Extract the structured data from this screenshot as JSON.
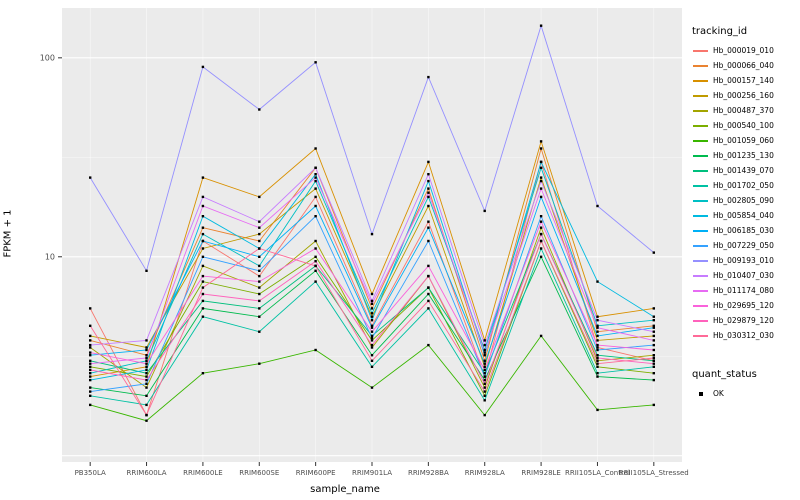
{
  "axes": {
    "x_label": "sample_name",
    "y_label": "FPKM + 1"
  },
  "legend": {
    "tracking_title": "tracking_id",
    "quant_title": "quant_status",
    "ok_label": "OK"
  },
  "panel": {
    "background": "#EBEBEB",
    "grid_color": "#FFFFFF",
    "point_color": "#000000",
    "tick_text_color": "#4D4D4D"
  },
  "chart_data": {
    "type": "line",
    "title": "",
    "xlabel": "sample_name",
    "ylabel": "FPKM + 1",
    "y_scale": "log10",
    "ylim": [
      0.93,
      178
    ],
    "y_ticks": [
      10,
      100
    ],
    "y_major": [
      1,
      10,
      100
    ],
    "y_minor": [
      3.162,
      31.62
    ],
    "grid": true,
    "legend_position": "right",
    "legend_title": "tracking_id",
    "quant_status": {
      "title": "quant_status",
      "items": [
        "OK"
      ]
    },
    "categories": [
      "PB350LA",
      "RRIM600LA",
      "RRIM600LE",
      "RRIM600SE",
      "RRIM600PE",
      "RRIM901LA",
      "RRIM928BA",
      "RRIM928LA",
      "RRIM928LE",
      "RRII105LA_Control",
      "RRII105LA_Stressed"
    ],
    "series": [
      {
        "name": "Hb_000019_010",
        "color": "#F8766D",
        "values": [
          5.5,
          1.6,
          12,
          8,
          20,
          4.5,
          15,
          2.5,
          30,
          3.5,
          3.0
        ]
      },
      {
        "name": "Hb_000066_040",
        "color": "#EA8331",
        "values": [
          3.8,
          3.2,
          14,
          12,
          28,
          5.5,
          22,
          3.0,
          35,
          4.2,
          4.5
        ]
      },
      {
        "name": "Hb_000157_140",
        "color": "#D89000",
        "values": [
          2.5,
          2.8,
          25,
          20,
          35,
          6.5,
          30,
          3.8,
          38,
          5.0,
          5.5
        ]
      },
      {
        "name": "Hb_000256_160",
        "color": "#C09B00",
        "values": [
          4.0,
          3.5,
          11,
          13,
          22,
          5.0,
          18,
          2.8,
          25,
          3.8,
          4.0
        ]
      },
      {
        "name": "Hb_000487_370",
        "color": "#A3A500",
        "values": [
          3.5,
          2.2,
          9,
          7,
          12,
          3.5,
          8,
          2.2,
          14,
          3.0,
          3.2
        ]
      },
      {
        "name": "Hb_000540_100",
        "color": "#7CAE00",
        "values": [
          2.8,
          2.5,
          7.5,
          6.5,
          10,
          3.8,
          7,
          2.0,
          12,
          2.8,
          2.6
        ]
      },
      {
        "name": "Hb_001059_060",
        "color": "#39B600",
        "values": [
          1.8,
          1.5,
          2.6,
          2.9,
          3.4,
          2.2,
          3.6,
          1.6,
          4.0,
          1.7,
          1.8
        ]
      },
      {
        "name": "Hb_001235_130",
        "color": "#00BB4E",
        "values": [
          2.2,
          2.0,
          5.5,
          5.0,
          8.5,
          3.2,
          6.5,
          2.4,
          10,
          2.5,
          2.4
        ]
      },
      {
        "name": "Hb_001439_070",
        "color": "#00BF7D",
        "values": [
          3.0,
          2.6,
          6.0,
          5.5,
          9.0,
          4.0,
          7.0,
          2.6,
          13,
          3.2,
          3.0
        ]
      },
      {
        "name": "Hb_001702_050",
        "color": "#00C1A3",
        "values": [
          2.0,
          1.8,
          5.0,
          4.2,
          7.5,
          2.8,
          5.5,
          1.9,
          11,
          2.6,
          2.8
        ]
      },
      {
        "name": "Hb_002805_090",
        "color": "#00BFC4",
        "values": [
          2.6,
          3.0,
          13,
          9,
          24,
          5.2,
          20,
          3.4,
          28,
          4.5,
          4.8
        ]
      },
      {
        "name": "Hb_005854_040",
        "color": "#00BAE0",
        "values": [
          2.4,
          2.7,
          16,
          11,
          26,
          4.8,
          24,
          3.2,
          30,
          7.5,
          5.0
        ]
      },
      {
        "name": "Hb_006185_030",
        "color": "#00B0F6",
        "values": [
          3.2,
          3.4,
          12,
          10,
          18,
          4.4,
          14,
          2.9,
          20,
          4.0,
          4.4
        ]
      },
      {
        "name": "Hb_007229_050",
        "color": "#35A2FF",
        "values": [
          2.1,
          2.3,
          10,
          8.5,
          16,
          3.9,
          12,
          2.5,
          16,
          3.4,
          3.6
        ]
      },
      {
        "name": "Hb_009193_010",
        "color": "#9590FF",
        "values": [
          25,
          8.5,
          90,
          55,
          95,
          13,
          80,
          17,
          145,
          18,
          10.5
        ]
      },
      {
        "name": "Hb_010407_030",
        "color": "#C77CFF",
        "values": [
          3.6,
          3.8,
          20,
          15,
          28,
          6.0,
          26,
          3.6,
          24,
          4.8,
          4.2
        ]
      },
      {
        "name": "Hb_011174_080",
        "color": "#E76BF3",
        "values": [
          2.9,
          3.1,
          18,
          14,
          25,
          5.8,
          21,
          3.3,
          22,
          4.4,
          3.8
        ]
      },
      {
        "name": "Hb_029695_120",
        "color": "#FA62DB",
        "values": [
          3.3,
          2.9,
          8.0,
          7.5,
          11,
          4.2,
          9.0,
          2.7,
          15,
          3.6,
          3.4
        ]
      },
      {
        "name": "Hb_029879_120",
        "color": "#FF62BC",
        "values": [
          2.7,
          2.4,
          6.5,
          6.0,
          9.5,
          3.6,
          8.0,
          2.3,
          13,
          3.1,
          2.9
        ]
      },
      {
        "name": "Hb_030312_030",
        "color": "#FF6A98",
        "values": [
          4.5,
          1.6,
          7.0,
          11,
          9.0,
          3.0,
          6.0,
          2.1,
          12,
          2.9,
          3.1
        ]
      }
    ]
  }
}
